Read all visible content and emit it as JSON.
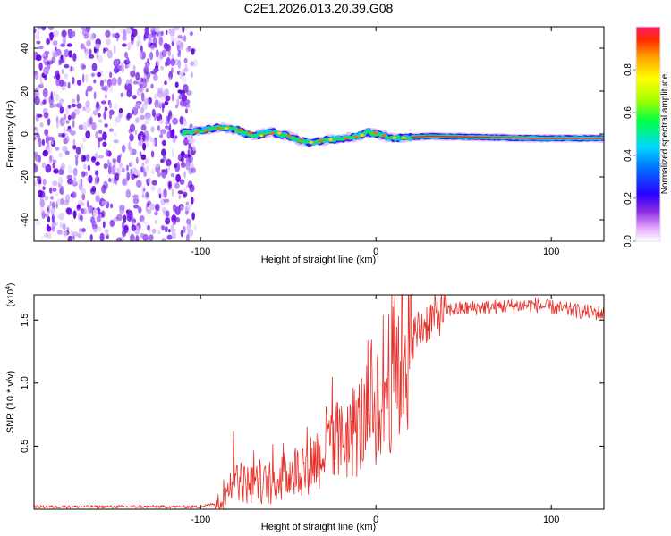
{
  "title": "C2E1.2026.013.20.39.G08",
  "chart_data": [
    {
      "type": "heatmap",
      "name": "spectrogram",
      "xlabel": "Height of straight line (km)",
      "ylabel": "Frequency (Hz)",
      "xlim": [
        -195,
        130
      ],
      "ylim": [
        -50,
        50
      ],
      "x_ticks": [
        -100,
        0,
        100
      ],
      "y_ticks": [
        -40,
        -20,
        0,
        20,
        40
      ],
      "colorbar": {
        "label": "Normalized spectral amplitude",
        "range": [
          0,
          1
        ],
        "ticks": [
          0.0,
          0.2,
          0.4,
          0.6,
          0.8
        ]
      },
      "track": [
        {
          "x": -110,
          "y": 0.5
        },
        {
          "x": -100,
          "y": 1.5
        },
        {
          "x": -90,
          "y": 3
        },
        {
          "x": -80,
          "y": 2
        },
        {
          "x": -70,
          "y": -1
        },
        {
          "x": -60,
          "y": 1
        },
        {
          "x": -50,
          "y": -1
        },
        {
          "x": -40,
          "y": -4
        },
        {
          "x": -30,
          "y": -3
        },
        {
          "x": -20,
          "y": -2
        },
        {
          "x": -10,
          "y": -1
        },
        {
          "x": -5,
          "y": 1
        },
        {
          "x": 0,
          "y": 0
        },
        {
          "x": 10,
          "y": -2
        },
        {
          "x": 30,
          "y": -1
        },
        {
          "x": 60,
          "y": -1.5
        },
        {
          "x": 90,
          "y": -2
        },
        {
          "x": 130,
          "y": -2
        }
      ],
      "noise_region_x": [
        -195,
        -103
      ]
    },
    {
      "type": "line",
      "name": "snr",
      "xlabel": "Height of straight line (km)",
      "ylabel": "SNR (10 * v/v)",
      "y_multiplier": "(x10^4)",
      "y_multiplier_base": "(x10",
      "y_multiplier_exp": "4",
      "y_multiplier_close": ")",
      "xlim": [
        -195,
        130
      ],
      "ylim": [
        0,
        1.7
      ],
      "x_ticks": [
        -100,
        0,
        100
      ],
      "y_ticks": [
        0.5,
        1.0,
        1.5
      ],
      "y_tick_labels": [
        "0.5",
        "1.0",
        "1.5"
      ],
      "series_color": "#e8302a",
      "profile": [
        {
          "x": -195,
          "y": 0.02
        },
        {
          "x": -100,
          "y": 0.02
        },
        {
          "x": -90,
          "y": 0.05
        },
        {
          "x": -85,
          "y": 0.15
        },
        {
          "x": -80,
          "y": 0.3
        },
        {
          "x": -75,
          "y": 0.2
        },
        {
          "x": -60,
          "y": 0.2
        },
        {
          "x": -50,
          "y": 0.28
        },
        {
          "x": -40,
          "y": 0.35
        },
        {
          "x": -30,
          "y": 0.45
        },
        {
          "x": -20,
          "y": 0.55
        },
        {
          "x": -10,
          "y": 0.65
        },
        {
          "x": 0,
          "y": 0.85
        },
        {
          "x": 10,
          "y": 1.1
        },
        {
          "x": 20,
          "y": 1.35
        },
        {
          "x": 30,
          "y": 1.5
        },
        {
          "x": 40,
          "y": 1.58
        },
        {
          "x": 60,
          "y": 1.6
        },
        {
          "x": 90,
          "y": 1.62
        },
        {
          "x": 110,
          "y": 1.58
        },
        {
          "x": 130,
          "y": 1.55
        }
      ]
    }
  ]
}
